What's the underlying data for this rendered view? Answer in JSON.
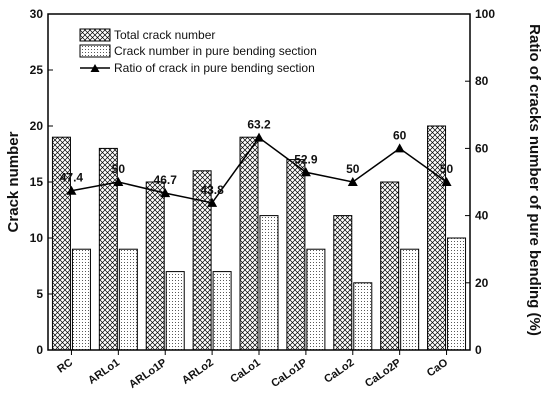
{
  "chart_data": {
    "type": "bar",
    "categories": [
      "RC",
      "ARLo1",
      "ARLo1P",
      "ARLo2",
      "CaLo1",
      "CaLo1P",
      "CaLo2",
      "CaLo2P",
      "CaO"
    ],
    "series": [
      {
        "name": "Total crack number",
        "type": "bar",
        "axis": "left",
        "pattern": "crosshatch",
        "values": [
          19,
          18,
          15,
          16,
          19,
          17,
          12,
          15,
          20
        ]
      },
      {
        "name": "Crack number in pure bending section",
        "type": "bar",
        "axis": "left",
        "pattern": "dotted",
        "values": [
          9,
          9,
          7,
          7,
          12,
          9,
          6,
          9,
          10
        ]
      },
      {
        "name": "Ratio of crack in pure bending section",
        "type": "line",
        "axis": "right",
        "marker": "triangle",
        "values": [
          47.4,
          50,
          46.7,
          43.8,
          63.2,
          52.9,
          50,
          60,
          50
        ],
        "labels": [
          "47.4",
          "50",
          "46.7",
          "43.8",
          "63.2",
          "52.9",
          "50",
          "60",
          "50"
        ]
      }
    ],
    "ylabel": "Crack number",
    "y2label": "Ratio of cracks number of pure bending (%)",
    "ylim": [
      0,
      30
    ],
    "y2lim": [
      0,
      100
    ],
    "yticks": [
      "0",
      "5",
      "10",
      "15",
      "20",
      "25",
      "30"
    ],
    "y2ticks": [
      "0",
      "20",
      "40",
      "60",
      "80",
      "100"
    ],
    "legend_position": "top-left",
    "grid": false,
    "colors": {
      "bar_edge": "#000000",
      "line": "#000000",
      "fill": "#ffffff"
    }
  }
}
